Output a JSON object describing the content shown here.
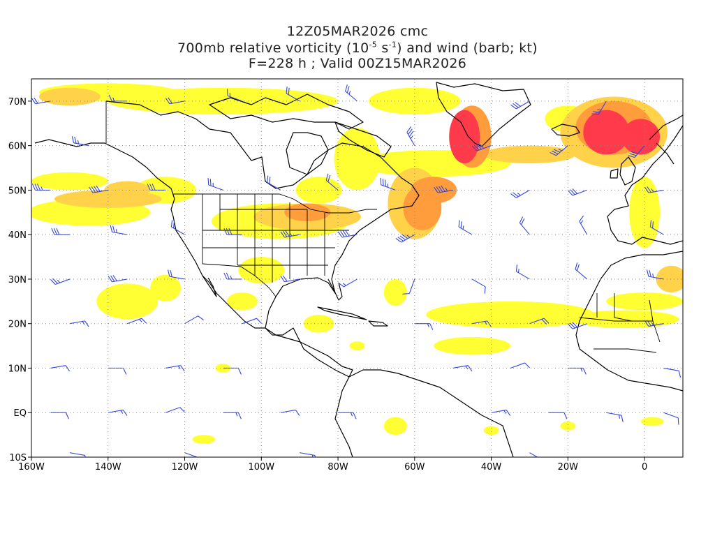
{
  "title": {
    "line1": "12Z05MAR2026 cmc",
    "line2_prefix": "700mb relative vorticity (10",
    "line2_exp1": "-5",
    "line2_mid": " s",
    "line2_exp2": "-1",
    "line2_suffix": ") and wind (barb; kt)",
    "line3": "F=228 h ; Valid 00Z15MAR2026"
  },
  "axes": {
    "lon_range": [
      -160,
      10
    ],
    "lat_range": [
      -10,
      75
    ],
    "lon_ticks": [
      {
        "value": -160,
        "label": "160W"
      },
      {
        "value": -140,
        "label": "140W"
      },
      {
        "value": -120,
        "label": "120W"
      },
      {
        "value": -100,
        "label": "100W"
      },
      {
        "value": -80,
        "label": "80W"
      },
      {
        "value": -60,
        "label": "60W"
      },
      {
        "value": -40,
        "label": "40W"
      },
      {
        "value": -20,
        "label": "20W"
      },
      {
        "value": 0,
        "label": "0"
      }
    ],
    "lat_ticks": [
      {
        "value": 70,
        "label": "70N"
      },
      {
        "value": 60,
        "label": "60N"
      },
      {
        "value": 50,
        "label": "50N"
      },
      {
        "value": 40,
        "label": "40N"
      },
      {
        "value": 30,
        "label": "30N"
      },
      {
        "value": 20,
        "label": "20N"
      },
      {
        "value": 10,
        "label": "10N"
      },
      {
        "value": 0,
        "label": "EQ"
      },
      {
        "value": -10,
        "label": "10S"
      }
    ],
    "grid": true
  },
  "colors": {
    "vort_low": "#ffff33",
    "vort_mid": "#ffd24a",
    "vort_high": "#ff9c3c",
    "vort_max": "#ff3a4a",
    "vort_peak": "#e4006a",
    "barb": "#3344dd",
    "coast": "#000000",
    "grid": "#888888"
  },
  "vorticity_features": [
    {
      "lon": -47,
      "lat": 62,
      "rx": 4,
      "ry": 6,
      "level": 4
    },
    {
      "lon": -10,
      "lat": 63,
      "rx": 6,
      "ry": 5,
      "level": 4
    },
    {
      "lon": -1,
      "lat": 62,
      "rx": 5,
      "ry": 4,
      "level": 4
    },
    {
      "lon": -58,
      "lat": 46,
      "rx": 5,
      "ry": 5,
      "level": 3
    },
    {
      "lon": -88,
      "lat": 45,
      "rx": 6,
      "ry": 2,
      "level": 3
    },
    {
      "lon": -55,
      "lat": 50,
      "rx": 6,
      "ry": 3,
      "level": 3
    },
    {
      "lon": -45,
      "lat": 62,
      "rx": 5,
      "ry": 7,
      "level": 3
    },
    {
      "lon": -8,
      "lat": 64,
      "rx": 10,
      "ry": 6,
      "level": 3
    },
    {
      "lon": -150,
      "lat": 71,
      "rx": 8,
      "ry": 2,
      "level": 2
    },
    {
      "lon": -30,
      "lat": 58,
      "rx": 12,
      "ry": 2,
      "level": 2
    },
    {
      "lon": -140,
      "lat": 48,
      "rx": 14,
      "ry": 2,
      "level": 2
    },
    {
      "lon": -135,
      "lat": 50,
      "rx": 6,
      "ry": 2,
      "level": 2
    },
    {
      "lon": -60,
      "lat": 47,
      "rx": 7,
      "ry": 8,
      "level": 2
    },
    {
      "lon": -88,
      "lat": 44,
      "rx": 14,
      "ry": 3,
      "level": 2
    },
    {
      "lon": -8,
      "lat": 63,
      "rx": 14,
      "ry": 8,
      "level": 2
    },
    {
      "lon": 7,
      "lat": 30,
      "rx": 4,
      "ry": 3,
      "level": 2
    },
    {
      "lon": -110,
      "lat": 70,
      "rx": 30,
      "ry": 3,
      "level": 1
    },
    {
      "lon": -140,
      "lat": 72,
      "rx": 18,
      "ry": 2,
      "level": 1
    },
    {
      "lon": -55,
      "lat": 56,
      "rx": 20,
      "ry": 3,
      "level": 1
    },
    {
      "lon": -60,
      "lat": 70,
      "rx": 12,
      "ry": 3,
      "level": 1
    },
    {
      "lon": -145,
      "lat": 45,
      "rx": 16,
      "ry": 3,
      "level": 1
    },
    {
      "lon": -150,
      "lat": 52,
      "rx": 10,
      "ry": 2,
      "level": 1
    },
    {
      "lon": -75,
      "lat": 57,
      "rx": 6,
      "ry": 7,
      "level": 1
    },
    {
      "lon": -95,
      "lat": 43,
      "rx": 18,
      "ry": 4,
      "level": 1
    },
    {
      "lon": -125,
      "lat": 50,
      "rx": 8,
      "ry": 3,
      "level": 1
    },
    {
      "lon": -35,
      "lat": 22,
      "rx": 22,
      "ry": 3,
      "level": 1
    },
    {
      "lon": -5,
      "lat": 21,
      "rx": 14,
      "ry": 2,
      "level": 1
    },
    {
      "lon": 0,
      "lat": 25,
      "rx": 10,
      "ry": 2,
      "level": 1
    },
    {
      "lon": -45,
      "lat": 15,
      "rx": 10,
      "ry": 2,
      "level": 1
    },
    {
      "lon": -135,
      "lat": 25,
      "rx": 8,
      "ry": 4,
      "level": 1
    },
    {
      "lon": -125,
      "lat": 28,
      "rx": 4,
      "ry": 3,
      "level": 1
    },
    {
      "lon": -105,
      "lat": 25,
      "rx": 4,
      "ry": 2,
      "level": 1
    },
    {
      "lon": -85,
      "lat": 20,
      "rx": 4,
      "ry": 2,
      "level": 1
    },
    {
      "lon": -65,
      "lat": 27,
      "rx": 3,
      "ry": 3,
      "level": 1
    },
    {
      "lon": -110,
      "lat": 10,
      "rx": 2,
      "ry": 1,
      "level": 1
    },
    {
      "lon": -75,
      "lat": 15,
      "rx": 2,
      "ry": 1,
      "level": 1
    },
    {
      "lon": -115,
      "lat": -6,
      "rx": 3,
      "ry": 1,
      "level": 1
    },
    {
      "lon": -65,
      "lat": -3,
      "rx": 3,
      "ry": 2,
      "level": 1
    },
    {
      "lon": -40,
      "lat": -4,
      "rx": 2,
      "ry": 1,
      "level": 1
    },
    {
      "lon": 2,
      "lat": -2,
      "rx": 3,
      "ry": 1,
      "level": 1
    },
    {
      "lon": -20,
      "lat": -3,
      "rx": 2,
      "ry": 1,
      "level": 1
    },
    {
      "lon": -100,
      "lat": 32,
      "rx": 6,
      "ry": 3,
      "level": 1
    },
    {
      "lon": -85,
      "lat": 50,
      "rx": 6,
      "ry": 3,
      "level": 1
    },
    {
      "lon": -20,
      "lat": 66,
      "rx": 6,
      "ry": 3,
      "level": 1
    },
    {
      "lon": 0,
      "lat": 45,
      "rx": 4,
      "ry": 8,
      "level": 1
    }
  ],
  "wind_barbs": [
    {
      "lon": -155,
      "lat": 70,
      "dir": 260,
      "spd": 20
    },
    {
      "lon": -145,
      "lat": 60,
      "dir": 280,
      "spd": 25
    },
    {
      "lon": -135,
      "lat": 70,
      "dir": 270,
      "spd": 15
    },
    {
      "lon": -120,
      "lat": 70,
      "dir": 260,
      "spd": 20
    },
    {
      "lon": -105,
      "lat": 70,
      "dir": 290,
      "spd": 15
    },
    {
      "lon": -90,
      "lat": 70,
      "dir": 300,
      "spd": 20
    },
    {
      "lon": -75,
      "lat": 70,
      "dir": 310,
      "spd": 25
    },
    {
      "lon": -60,
      "lat": 60,
      "dir": 330,
      "spd": 35
    },
    {
      "lon": -50,
      "lat": 50,
      "dir": 260,
      "spd": 45
    },
    {
      "lon": -40,
      "lat": 60,
      "dir": 250,
      "spd": 40
    },
    {
      "lon": -30,
      "lat": 70,
      "dir": 240,
      "spd": 30
    },
    {
      "lon": -20,
      "lat": 60,
      "dir": 230,
      "spd": 35
    },
    {
      "lon": -10,
      "lat": 70,
      "dir": 210,
      "spd": 25
    },
    {
      "lon": 0,
      "lat": 60,
      "dir": 220,
      "spd": 30
    },
    {
      "lon": -155,
      "lat": 50,
      "dir": 270,
      "spd": 35
    },
    {
      "lon": -140,
      "lat": 50,
      "dir": 260,
      "spd": 40
    },
    {
      "lon": -125,
      "lat": 50,
      "dir": 270,
      "spd": 30
    },
    {
      "lon": -110,
      "lat": 50,
      "dir": 290,
      "spd": 25
    },
    {
      "lon": -95,
      "lat": 50,
      "dir": 300,
      "spd": 20
    },
    {
      "lon": -80,
      "lat": 50,
      "dir": 310,
      "spd": 20
    },
    {
      "lon": -65,
      "lat": 50,
      "dir": 290,
      "spd": 35
    },
    {
      "lon": -30,
      "lat": 50,
      "dir": 240,
      "spd": 25
    },
    {
      "lon": -15,
      "lat": 50,
      "dir": 250,
      "spd": 30
    },
    {
      "lon": 5,
      "lat": 50,
      "dir": 260,
      "spd": 25
    },
    {
      "lon": -150,
      "lat": 40,
      "dir": 270,
      "spd": 30
    },
    {
      "lon": -135,
      "lat": 40,
      "dir": 280,
      "spd": 25
    },
    {
      "lon": -120,
      "lat": 40,
      "dir": 300,
      "spd": 20
    },
    {
      "lon": -105,
      "lat": 40,
      "dir": 270,
      "spd": 30
    },
    {
      "lon": -90,
      "lat": 40,
      "dir": 260,
      "spd": 35
    },
    {
      "lon": -75,
      "lat": 40,
      "dir": 260,
      "spd": 40
    },
    {
      "lon": -60,
      "lat": 40,
      "dir": 240,
      "spd": 45
    },
    {
      "lon": -45,
      "lat": 40,
      "dir": 300,
      "spd": 25
    },
    {
      "lon": -30,
      "lat": 40,
      "dir": 320,
      "spd": 20
    },
    {
      "lon": -15,
      "lat": 40,
      "dir": 330,
      "spd": 15
    },
    {
      "lon": 5,
      "lat": 40,
      "dir": 300,
      "spd": 20
    },
    {
      "lon": -150,
      "lat": 30,
      "dir": 250,
      "spd": 25
    },
    {
      "lon": -135,
      "lat": 30,
      "dir": 260,
      "spd": 30
    },
    {
      "lon": -120,
      "lat": 30,
      "dir": 280,
      "spd": 20
    },
    {
      "lon": -105,
      "lat": 30,
      "dir": 270,
      "spd": 25
    },
    {
      "lon": -90,
      "lat": 30,
      "dir": 260,
      "spd": 20
    },
    {
      "lon": -75,
      "lat": 30,
      "dir": 240,
      "spd": 15
    },
    {
      "lon": -60,
      "lat": 30,
      "dir": 200,
      "spd": 10
    },
    {
      "lon": -45,
      "lat": 30,
      "dir": 120,
      "spd": 10
    },
    {
      "lon": -30,
      "lat": 30,
      "dir": 300,
      "spd": 15
    },
    {
      "lon": -15,
      "lat": 30,
      "dir": 310,
      "spd": 20
    },
    {
      "lon": 5,
      "lat": 30,
      "dir": 280,
      "spd": 25
    },
    {
      "lon": -150,
      "lat": 20,
      "dir": 80,
      "spd": 15
    },
    {
      "lon": -135,
      "lat": 20,
      "dir": 70,
      "spd": 15
    },
    {
      "lon": -120,
      "lat": 20,
      "dir": 60,
      "spd": 10
    },
    {
      "lon": -105,
      "lat": 20,
      "dir": 70,
      "spd": 10
    },
    {
      "lon": -60,
      "lat": 20,
      "dir": 90,
      "spd": 15
    },
    {
      "lon": -45,
      "lat": 20,
      "dir": 80,
      "spd": 15
    },
    {
      "lon": -30,
      "lat": 20,
      "dir": 70,
      "spd": 20
    },
    {
      "lon": -15,
      "lat": 20,
      "dir": 250,
      "spd": 30
    },
    {
      "lon": 5,
      "lat": 20,
      "dir": 260,
      "spd": 25
    },
    {
      "lon": -155,
      "lat": 10,
      "dir": 80,
      "spd": 10
    },
    {
      "lon": -140,
      "lat": 10,
      "dir": 90,
      "spd": 10
    },
    {
      "lon": -125,
      "lat": 10,
      "dir": 80,
      "spd": 15
    },
    {
      "lon": -110,
      "lat": 10,
      "dir": 90,
      "spd": 10
    },
    {
      "lon": -50,
      "lat": 10,
      "dir": 80,
      "spd": 15
    },
    {
      "lon": -35,
      "lat": 10,
      "dir": 70,
      "spd": 10
    },
    {
      "lon": -20,
      "lat": 10,
      "dir": 90,
      "spd": 15
    },
    {
      "lon": 5,
      "lat": 10,
      "dir": 100,
      "spd": 10
    },
    {
      "lon": -155,
      "lat": 0,
      "dir": 90,
      "spd": 10
    },
    {
      "lon": -140,
      "lat": 0,
      "dir": 80,
      "spd": 15
    },
    {
      "lon": -125,
      "lat": 0,
      "dir": 70,
      "spd": 10
    },
    {
      "lon": -110,
      "lat": 0,
      "dir": 90,
      "spd": 15
    },
    {
      "lon": -95,
      "lat": 0,
      "dir": 80,
      "spd": 10
    },
    {
      "lon": -80,
      "lat": 0,
      "dir": 90,
      "spd": 15
    },
    {
      "lon": -40,
      "lat": 0,
      "dir": 80,
      "spd": 15
    },
    {
      "lon": -25,
      "lat": 0,
      "dir": 90,
      "spd": 10
    },
    {
      "lon": -10,
      "lat": 0,
      "dir": 100,
      "spd": 15
    },
    {
      "lon": 5,
      "lat": 0,
      "dir": 110,
      "spd": 10
    },
    {
      "lon": -150,
      "lat": -9,
      "dir": 100,
      "spd": 10
    },
    {
      "lon": -120,
      "lat": -9,
      "dir": 110,
      "spd": 10
    },
    {
      "lon": -90,
      "lat": -9,
      "dir": 100,
      "spd": 15
    },
    {
      "lon": -30,
      "lat": -9,
      "dir": 120,
      "spd": 10
    }
  ]
}
